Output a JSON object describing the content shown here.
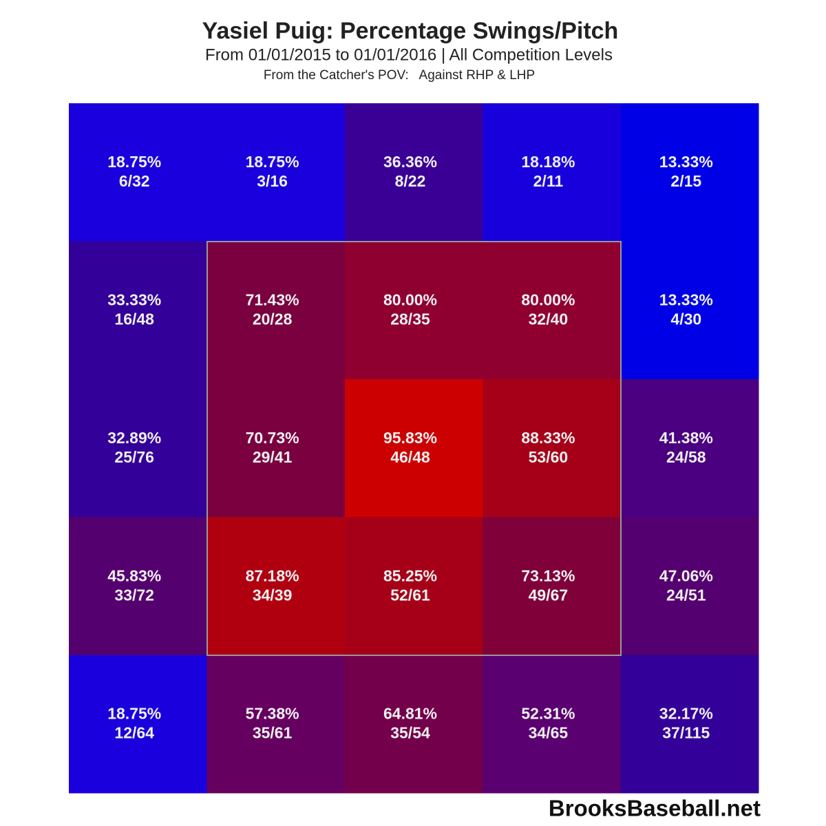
{
  "chart_data": {
    "type": "heatmap",
    "title": "Yasiel Puig: Percentage Swings/Pitch",
    "subtitle": "From 01/01/2015 to 01/01/2016 | All Competition Levels",
    "note": "From the Catcher's POV:   Against RHP & LHP",
    "source": "BrooksBaseball.net",
    "values": [
      [
        18.75,
        18.75,
        36.36,
        18.18,
        13.33
      ],
      [
        33.33,
        71.43,
        80,
        80,
        13.33
      ],
      [
        32.89,
        70.73,
        95.83,
        88.33,
        41.38
      ],
      [
        45.83,
        87.18,
        85.25,
        73.13,
        47.06
      ],
      [
        18.75,
        57.38,
        64.81,
        52.31,
        32.17
      ]
    ],
    "value_labels": [
      [
        "18.75%",
        "18.75%",
        "36.36%",
        "18.18%",
        "13.33%"
      ],
      [
        "33.33%",
        "71.43%",
        "80.00%",
        "80.00%",
        "13.33%"
      ],
      [
        "32.89%",
        "70.73%",
        "95.83%",
        "88.33%",
        "41.38%"
      ],
      [
        "45.83%",
        "87.18%",
        "85.25%",
        "73.13%",
        "47.06%"
      ],
      [
        "18.75%",
        "57.38%",
        "64.81%",
        "52.31%",
        "32.17%"
      ]
    ],
    "counts": [
      [
        "6/32",
        "3/16",
        "8/22",
        "2/11",
        "2/15"
      ],
      [
        "16/48",
        "20/28",
        "28/35",
        "32/40",
        "4/30"
      ],
      [
        "25/76",
        "29/41",
        "46/48",
        "53/60",
        "24/58"
      ],
      [
        "33/72",
        "34/39",
        "52/61",
        "49/67",
        "24/51"
      ],
      [
        "12/64",
        "35/61",
        "35/54",
        "34/65",
        "37/115"
      ]
    ],
    "colors": [
      [
        "#1a00dc",
        "#1a00dc",
        "#3a0096",
        "#1800dc",
        "#0000e6"
      ],
      [
        "#330099",
        "#7a003f",
        "#8f0030",
        "#8f0030",
        "#0000e6"
      ],
      [
        "#330099",
        "#7a0040",
        "#cc0000",
        "#a50018",
        "#4a0080"
      ],
      [
        "#55006f",
        "#b00010",
        "#a50018",
        "#80003a",
        "#550070"
      ],
      [
        "#1a00dc",
        "#660060",
        "#73004a",
        "#5a0070",
        "#330099"
      ]
    ]
  }
}
